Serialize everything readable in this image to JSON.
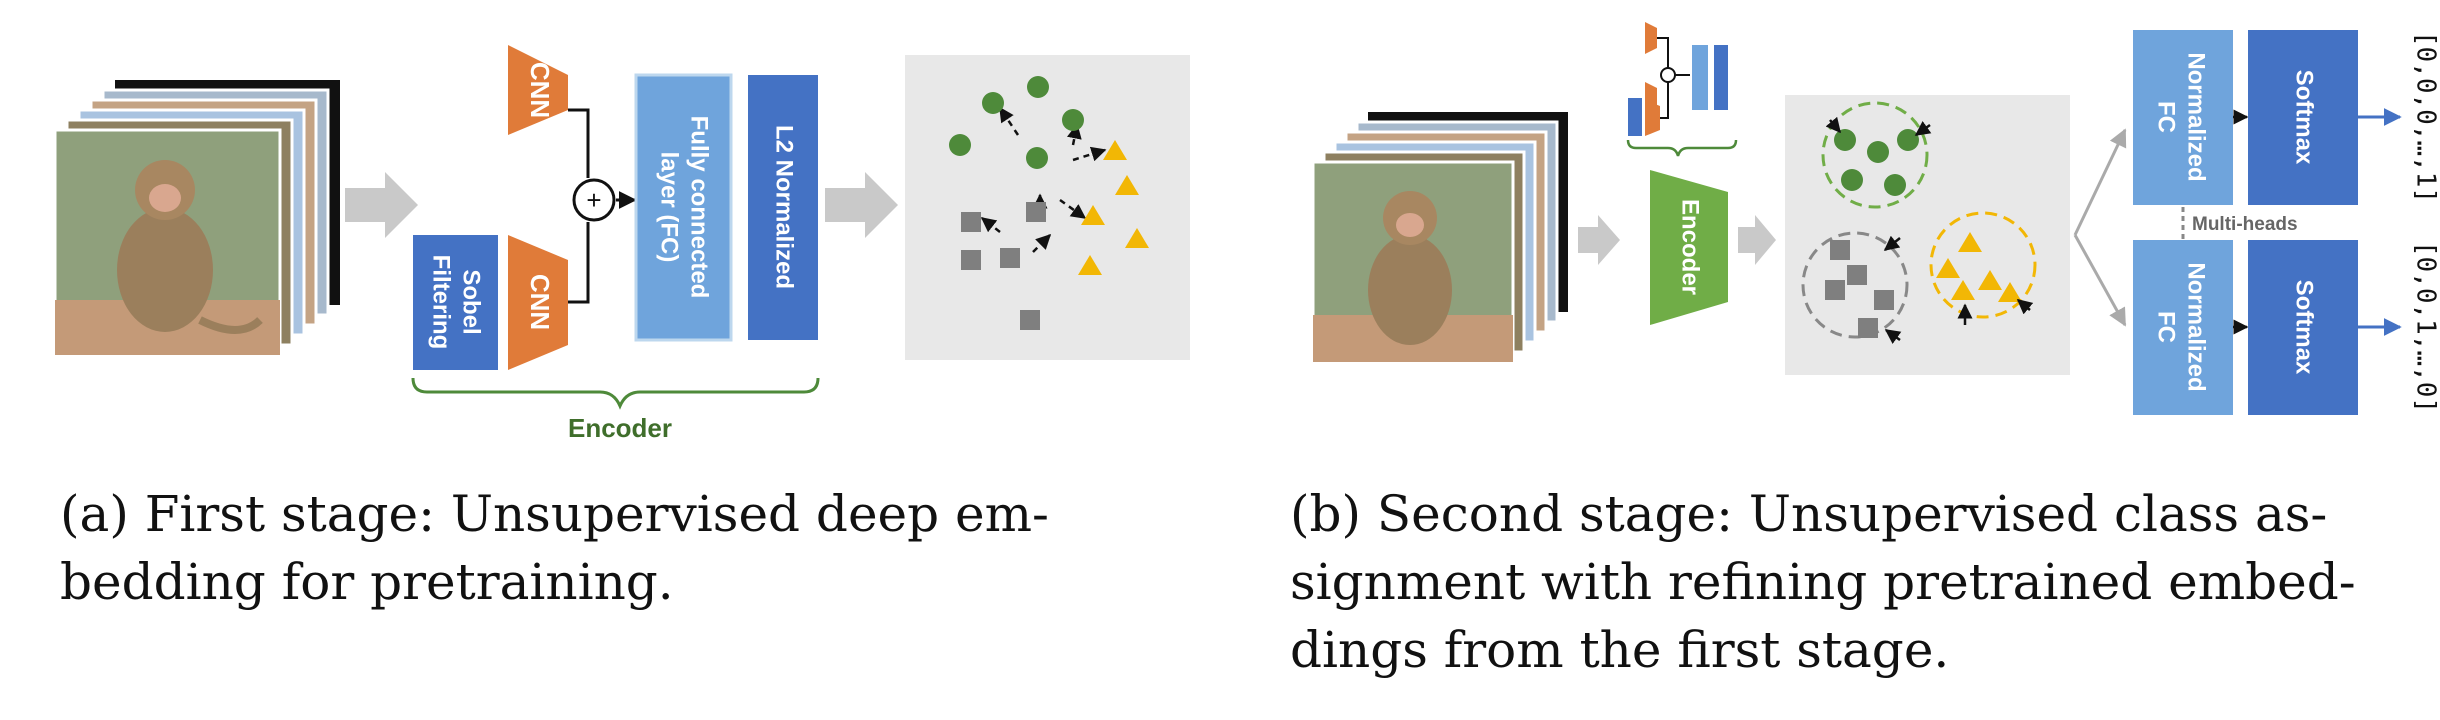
{
  "panel_a": {
    "cnn_top": "CNN",
    "cnn_bottom": "CNN",
    "sobel": [
      "Sobel",
      "Filtering"
    ],
    "plus": "+",
    "fc": [
      "Fully connected",
      "layer (FC)"
    ],
    "l2": "L2 Normalized",
    "encoder": "Encoder",
    "caption": [
      "(a) First stage: Unsupervised deep em-",
      "bedding for pretraining."
    ]
  },
  "panel_b": {
    "encoder": "Encoder",
    "fc_top": [
      "Normalized",
      "FC"
    ],
    "fc_bottom": [
      "Normalized",
      "FC"
    ],
    "softmax_top": "Softmax",
    "softmax_bottom": "Softmax",
    "multi_heads": "Multi-heads",
    "output_top": "[0,0,0,…,1]",
    "output_bottom": "[0,0,1,…,0]",
    "caption": [
      "(b) Second stage: Unsupervised class as-",
      "signment with refining pretrained embed-",
      "dings from the first stage."
    ]
  },
  "colors": {
    "orange": "#E07B39",
    "blue_dark": "#4472C4",
    "blue_light": "#6FA4DC",
    "green_dark": "#4E8A3A",
    "green_enc": "#70AD47",
    "yellow": "#F2B705",
    "gray_square": "#7F7F7F",
    "panel_bg": "#E8E8E8",
    "arrow_gray": "#C9C9C9",
    "encoder_text": "#3F6E2B"
  }
}
